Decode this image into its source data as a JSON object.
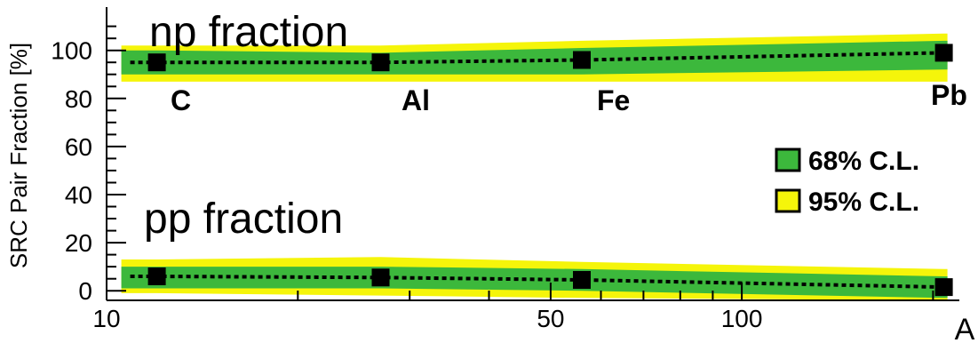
{
  "chart_data": {
    "type": "line",
    "title": "",
    "xlabel": "A",
    "ylabel": "SRC Pair Fraction [%]",
    "x_scale": "log",
    "xlim": [
      10,
      220
    ],
    "ylim": [
      -4,
      118
    ],
    "x_ticks": [
      10,
      50,
      100
    ],
    "y_ticks": [
      0,
      20,
      40,
      60,
      80,
      100
    ],
    "grid": false,
    "legend_position": "right",
    "colors": {
      "cl68": "#3cb83c",
      "cl95": "#f5f50a",
      "marker": "#000000"
    },
    "legend": [
      {
        "key": "cl68",
        "label": "68% C.L."
      },
      {
        "key": "cl95",
        "label": "95% C.L."
      }
    ],
    "nuclei": [
      {
        "label": "C",
        "x": 12
      },
      {
        "label": "Al",
        "x": 27
      },
      {
        "label": "Fe",
        "x": 56
      },
      {
        "label": "Pb",
        "x": 208
      }
    ],
    "series": [
      {
        "name": "np fraction",
        "points": [
          {
            "x": 12,
            "y": 95
          },
          {
            "x": 27,
            "y": 95
          },
          {
            "x": 56,
            "y": 96
          },
          {
            "x": 208,
            "y": 99
          }
        ],
        "band68": [
          [
            90,
            100
          ],
          [
            90,
            99
          ],
          [
            90,
            101
          ],
          [
            92,
            104
          ]
        ],
        "band95": [
          [
            87,
            102
          ],
          [
            87,
            102
          ],
          [
            87,
            104
          ],
          [
            87,
            107
          ]
        ]
      },
      {
        "name": "pp fraction",
        "points": [
          {
            "x": 12,
            "y": 6
          },
          {
            "x": 27,
            "y": 5.5
          },
          {
            "x": 56,
            "y": 4.5
          },
          {
            "x": 208,
            "y": 1.5
          }
        ],
        "band68": [
          [
            1,
            10
          ],
          [
            1,
            10
          ],
          [
            0,
            9
          ],
          [
            -3,
            6
          ]
        ],
        "band95": [
          [
            -1,
            13
          ],
          [
            -2,
            14
          ],
          [
            -3,
            12
          ],
          [
            -4,
            9
          ]
        ]
      }
    ]
  }
}
